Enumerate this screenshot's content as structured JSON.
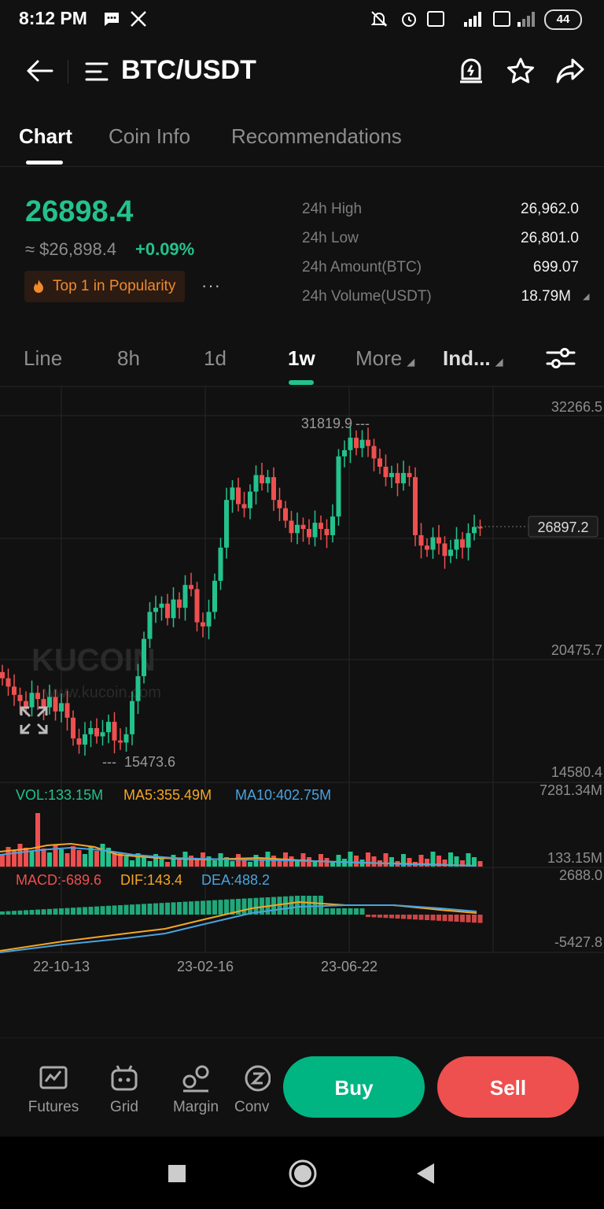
{
  "status_bar": {
    "time": "8:12 PM",
    "battery": "44"
  },
  "header": {
    "pair": "BTC/USDT"
  },
  "tabs": [
    {
      "label": "Chart"
    },
    {
      "label": "Coin Info"
    },
    {
      "label": "Recommendations"
    }
  ],
  "ticker": {
    "last_price": "26898.4",
    "fiat_price": "≈ $26,898.4",
    "change": "+0.09%",
    "badge": "Top 1 in Popularity",
    "more": "···",
    "stats": [
      {
        "label": "24h High",
        "value": "26,962.0"
      },
      {
        "label": "24h Low",
        "value": "26,801.0"
      },
      {
        "label": "24h Amount(BTC)",
        "value": "699.07"
      },
      {
        "label": "24h Volume(USDT)",
        "value": "18.79M"
      }
    ]
  },
  "toolbar": {
    "line": "Line",
    "h8": "8h",
    "d1": "1d",
    "w1": "1w",
    "more": "More",
    "indicators": "Ind..."
  },
  "chart": {
    "price_axis": {
      "top": "32266.5",
      "mid": "20475.7",
      "bottom": "14580.4"
    },
    "current_price_tag": "26897.2",
    "high_marker": "31819.9",
    "low_marker": "15473.6",
    "watermark": "KUCOIN",
    "watermark_url": "www.kucoin.com",
    "vol": {
      "vol": "VOL:133.15M",
      "ma5": "MA5:355.49M",
      "ma10": "MA10:402.75M",
      "axis_top": "7281.34M",
      "axis_bottom": "133.15M"
    },
    "macd": {
      "macd": "MACD:-689.6",
      "dif": "DIF:143.4",
      "dea": "DEA:488.2",
      "axis_top": "2688.0",
      "axis_bottom": "-5427.8"
    },
    "dates": [
      "22-10-13",
      "23-02-16",
      "23-06-22"
    ]
  },
  "bottom_nav": [
    {
      "label": "Futures"
    },
    {
      "label": "Grid"
    },
    {
      "label": "Margin"
    },
    {
      "label": "Conv"
    }
  ],
  "actions": {
    "buy": "Buy",
    "sell": "Sell"
  },
  "colors": {
    "up": "#23c28d",
    "down": "#ee4f4f",
    "ma5": "#f5a623",
    "ma10": "#4aa3df"
  },
  "icons": [
    "back-arrow-icon",
    "menu-icon",
    "price-alert-icon",
    "star-icon",
    "share-icon",
    "settings-sliders-icon",
    "fullscreen-icon"
  ]
}
